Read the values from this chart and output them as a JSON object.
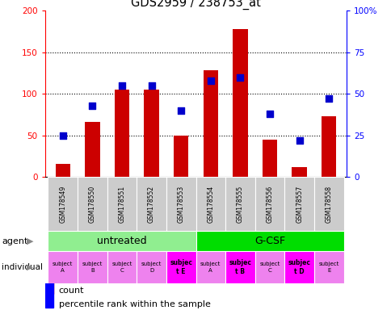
{
  "title": "GDS2959 / 238753_at",
  "samples": [
    "GSM178549",
    "GSM178550",
    "GSM178551",
    "GSM178552",
    "GSM178553",
    "GSM178554",
    "GSM178555",
    "GSM178556",
    "GSM178557",
    "GSM178558"
  ],
  "counts": [
    15,
    66,
    105,
    105,
    50,
    128,
    178,
    45,
    12,
    73
  ],
  "percentiles": [
    25,
    43,
    55,
    55,
    40,
    58,
    60,
    38,
    22,
    47
  ],
  "agent_groups": [
    {
      "label": "untreated",
      "start": 0,
      "end": 5,
      "color": "#90EE90"
    },
    {
      "label": "G-CSF",
      "start": 5,
      "end": 10,
      "color": "#00DD00"
    }
  ],
  "individuals": [
    [
      "subject",
      "A"
    ],
    [
      "subject",
      "B"
    ],
    [
      "subject",
      "C"
    ],
    [
      "subject",
      "D"
    ],
    [
      "subjec",
      "t E"
    ],
    [
      "subject",
      "A"
    ],
    [
      "subjec",
      "t B"
    ],
    [
      "subject",
      "C"
    ],
    [
      "subjec",
      "t D"
    ],
    [
      "subject",
      "E"
    ]
  ],
  "individual_colors": [
    "#EE82EE",
    "#EE82EE",
    "#EE82EE",
    "#EE82EE",
    "#FF00FF",
    "#EE82EE",
    "#FF00FF",
    "#EE82EE",
    "#FF00FF",
    "#EE82EE"
  ],
  "individual_bold": [
    false,
    false,
    false,
    false,
    true,
    false,
    true,
    false,
    true,
    false
  ],
  "bar_color": "#CC0000",
  "dot_color": "#0000CC",
  "ylim_left": [
    0,
    200
  ],
  "ylim_right": [
    0,
    100
  ],
  "yticks_left": [
    0,
    50,
    100,
    150,
    200
  ],
  "yticks_right": [
    0,
    25,
    50,
    75,
    100
  ],
  "ytick_labels_right": [
    "0",
    "25",
    "50",
    "75",
    "100%"
  ],
  "bar_width": 0.5,
  "dot_size": 40,
  "grid_lines": [
    50,
    100,
    150
  ]
}
